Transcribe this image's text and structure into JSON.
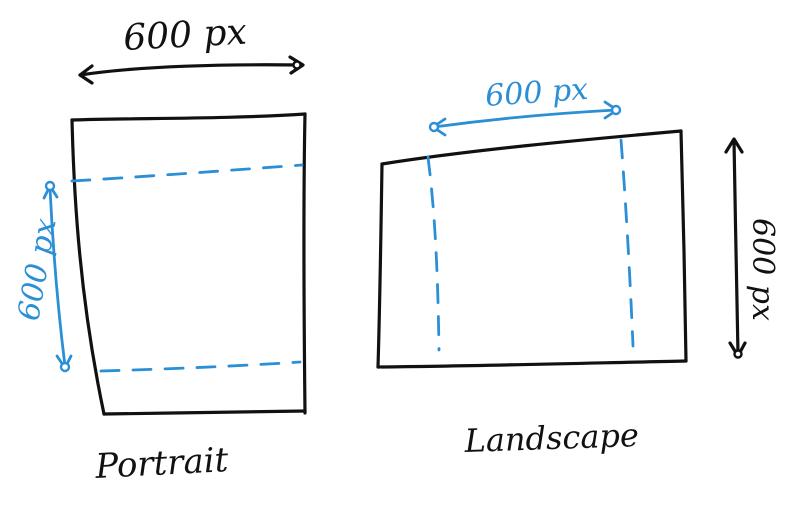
{
  "labels": {
    "top_width": "600 px",
    "landscape_width": "600 px",
    "portrait_side": "600 px",
    "landscape_side": "600 px",
    "portrait_caption": "Portrait",
    "landscape_caption": "Landscape"
  },
  "colors": {
    "ink": "#111111",
    "accent": "#2b8fd6",
    "background": "#ffffff"
  }
}
